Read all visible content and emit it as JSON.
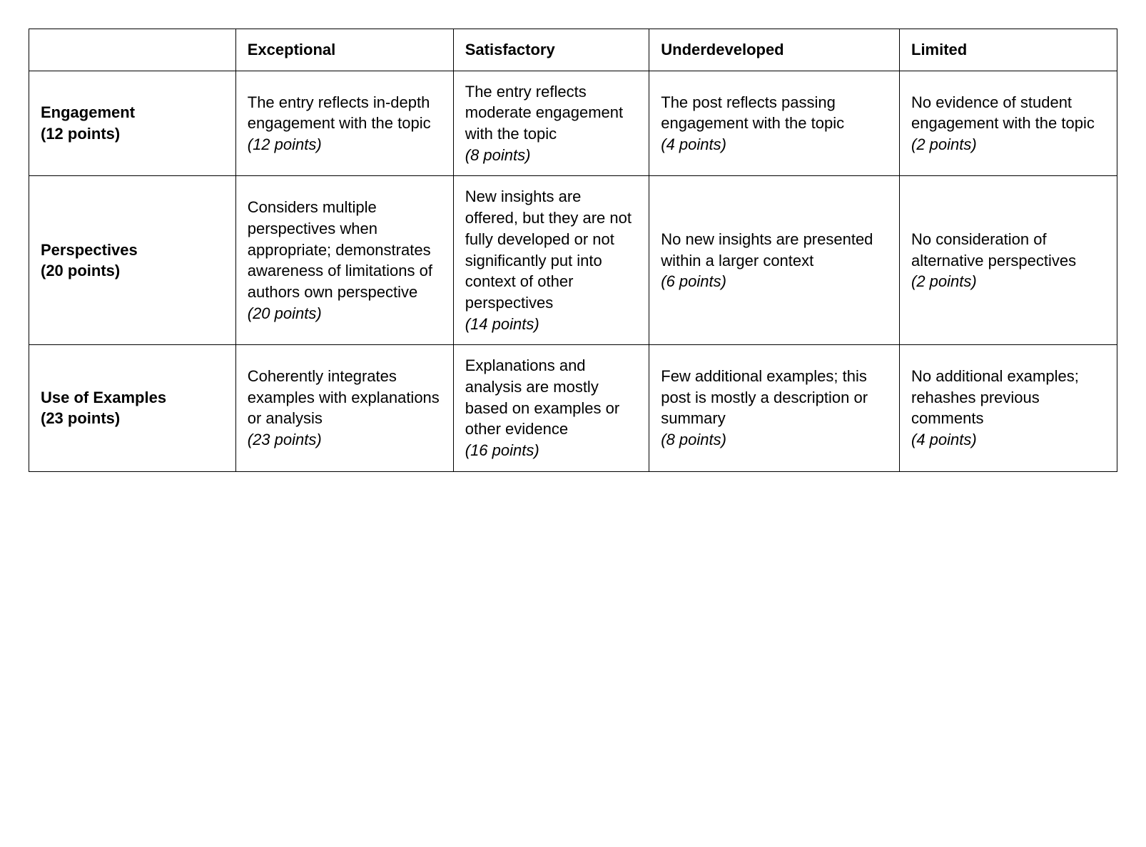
{
  "table": {
    "type": "table",
    "border_color": "#000000",
    "background_color": "#ffffff",
    "text_color": "#000000",
    "font_family": "Arial",
    "header_fontsize": 22,
    "body_fontsize": 22,
    "cell_padding": "14px 16px",
    "column_widths_pct": [
      19,
      20,
      18,
      23,
      20
    ],
    "columns": [
      {
        "id": "criteria",
        "label": ""
      },
      {
        "id": "exceptional",
        "label": "Exceptional"
      },
      {
        "id": "satisfactory",
        "label": "Satisfactory"
      },
      {
        "id": "underdeveloped",
        "label": "Underdeveloped"
      },
      {
        "id": "limited",
        "label": "Limited"
      }
    ],
    "rows": [
      {
        "header": {
          "title": "Engagement",
          "points_label": "(12 points)"
        },
        "cells": [
          {
            "text": "The entry reflects in-depth engagement with the topic",
            "points_label": "(12 points)"
          },
          {
            "text": "The entry reflects moderate engagement with the topic",
            "points_label": "(8 points)"
          },
          {
            "text": "The post reflects passing engagement with the topic",
            "points_label": "(4 points)"
          },
          {
            "text": "No evidence of student engagement with the topic",
            "points_label": "(2 points)"
          }
        ]
      },
      {
        "header": {
          "title": "Perspectives",
          "points_label": "(20 points)"
        },
        "cells": [
          {
            "text": "Considers multiple perspectives when appropriate; demonstrates awareness of limitations of authors own perspective",
            "points_label": "(20 points)"
          },
          {
            "text": "New insights are offered, but they are not fully developed or not significantly put into context of other perspectives",
            "points_label": "(14 points)"
          },
          {
            "text": "No new insights are presented within a larger context",
            "points_label": "(6 points)"
          },
          {
            "text": "No consideration of alternative perspectives",
            "points_label": "(2 points)"
          }
        ]
      },
      {
        "header": {
          "title": "Use of Examples",
          "points_label": "(23 points)"
        },
        "cells": [
          {
            "text": "Coherently integrates examples with explanations or analysis",
            "points_label": "(23 points)"
          },
          {
            "text": "Explanations and analysis are mostly based on examples or other evidence",
            "points_label": "(16 points)"
          },
          {
            "text": "Few additional examples; this post is mostly a description or summary",
            "points_label": "(8 points)"
          },
          {
            "text": "No additional examples; rehashes previous comments",
            "points_label": "(4 points)"
          }
        ]
      }
    ]
  }
}
